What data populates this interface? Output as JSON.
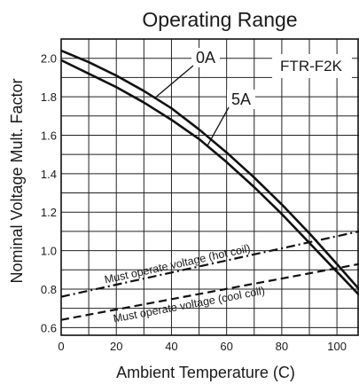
{
  "chart_data": {
    "type": "line",
    "title": "Operating Range",
    "xlabel": "Ambient Temperature (C)",
    "ylabel": "Nominal Voltage Mult. Factor",
    "xlim": [
      0,
      108
    ],
    "ylim": [
      0.56,
      2.1
    ],
    "xticks": [
      "0",
      "20",
      "40",
      "60",
      "80",
      "100"
    ],
    "yticks": [
      "0.6",
      "0.8",
      "1.0",
      "1.2",
      "1.4",
      "1.6",
      "1.8",
      "2.0"
    ],
    "x_minor_step": 10,
    "y_minor_step": 0.1,
    "grid": true,
    "tag": "FTR-F2K",
    "series": [
      {
        "name": "0A",
        "style": "solid",
        "x": [
          0,
          10,
          20,
          30,
          40,
          50,
          60,
          70,
          80,
          90,
          100,
          108
        ],
        "y": [
          2.04,
          1.98,
          1.91,
          1.83,
          1.74,
          1.63,
          1.51,
          1.38,
          1.24,
          1.09,
          0.93,
          0.8
        ]
      },
      {
        "name": "5A",
        "style": "solid",
        "x": [
          0,
          10,
          20,
          30,
          40,
          50,
          60,
          70,
          80,
          90,
          100,
          108
        ],
        "y": [
          1.99,
          1.92,
          1.85,
          1.77,
          1.68,
          1.58,
          1.46,
          1.33,
          1.19,
          1.04,
          0.89,
          0.77
        ]
      },
      {
        "name": "Must operate voltage (hot coil)",
        "style": "dashdot",
        "x": [
          0,
          108
        ],
        "y": [
          0.76,
          1.1
        ]
      },
      {
        "name": "Must operate voltage (cool coil)",
        "style": "dashed",
        "x": [
          0,
          108
        ],
        "y": [
          0.64,
          0.93
        ]
      }
    ]
  }
}
